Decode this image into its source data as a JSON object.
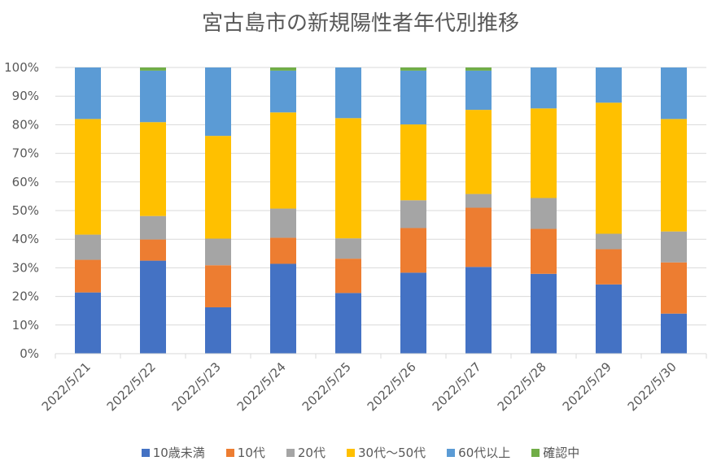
{
  "chart_data": {
    "type": "bar",
    "stacked": "percent",
    "title": "宮古島市の新規陽性者年代別推移",
    "xlabel": "",
    "ylabel": "",
    "ylim": [
      0,
      100
    ],
    "yticks": [
      "0%",
      "10%",
      "20%",
      "30%",
      "40%",
      "50%",
      "60%",
      "70%",
      "80%",
      "90%",
      "100%"
    ],
    "grid": true,
    "legend_position": "bottom",
    "categories": [
      "2022/5/21",
      "2022/5/22",
      "2022/5/23",
      "2022/5/24",
      "2022/5/25",
      "2022/5/26",
      "2022/5/27",
      "2022/5/28",
      "2022/5/29",
      "2022/5/30"
    ],
    "series": [
      {
        "name": "10歳未満",
        "color": "#4472C4",
        "values": [
          21.4,
          32.5,
          16.2,
          31.4,
          21.2,
          28.3,
          30.3,
          27.9,
          24.2,
          14.0
        ]
      },
      {
        "name": "10代",
        "color": "#ED7D31",
        "values": [
          11.4,
          7.4,
          14.7,
          9.1,
          12.0,
          15.6,
          20.7,
          15.7,
          12.3,
          17.9
        ]
      },
      {
        "name": "20代",
        "color": "#A5A5A5",
        "values": [
          8.8,
          8.2,
          9.3,
          10.2,
          7.1,
          9.7,
          4.8,
          10.8,
          5.4,
          10.8
        ]
      },
      {
        "name": "30代～50代",
        "color": "#FFC000",
        "values": [
          40.4,
          32.8,
          35.9,
          33.6,
          42.0,
          26.5,
          29.4,
          31.3,
          45.8,
          39.3
        ]
      },
      {
        "name": "60代以上",
        "color": "#5B9BD5",
        "values": [
          18.0,
          18.0,
          23.9,
          14.6,
          17.7,
          18.8,
          13.7,
          14.3,
          12.3,
          18.0
        ]
      },
      {
        "name": "確認中",
        "color": "#70AD47",
        "values": [
          0,
          1.1,
          0,
          1.1,
          0,
          1.1,
          1.1,
          0,
          0,
          0
        ]
      }
    ]
  }
}
